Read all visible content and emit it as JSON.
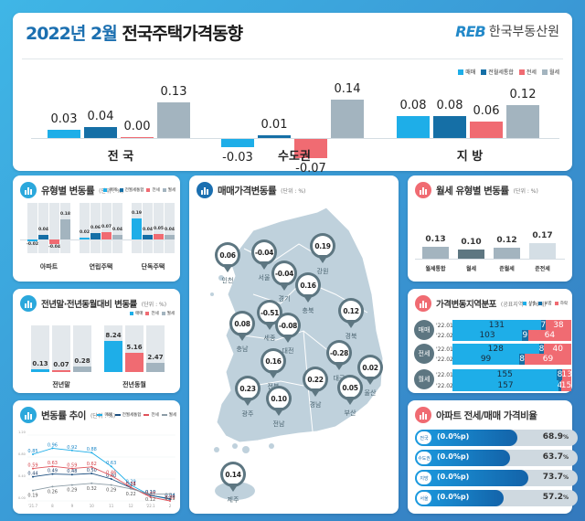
{
  "header": {
    "title_highlight": "2022년 2월",
    "title_main": "전국주택가격동향",
    "logo_mark": "REB",
    "logo_name": "한국부동산원"
  },
  "legend": {
    "sale": "매매",
    "combined": "전월세통합",
    "jeonse": "전세",
    "monthly": "월세"
  },
  "colors": {
    "sale": "#1eaee8",
    "combined": "#156fa6",
    "jeonse": "#f06b72",
    "monthly": "#a3b4bf",
    "accent": "#1b6fb0"
  },
  "overview": {
    "groups": [
      {
        "name": "전 국",
        "values": [
          "0.03",
          "0.04",
          "0.00",
          "0.13"
        ]
      },
      {
        "name": "수도권",
        "values": [
          "-0.03",
          "0.01",
          "-0.07",
          "0.14"
        ]
      },
      {
        "name": "지 방",
        "values": [
          "0.08",
          "0.08",
          "0.06",
          "0.12"
        ]
      }
    ]
  },
  "type_panel": {
    "title": "유형별 변동률",
    "unit": "(단위 : %)",
    "groups": [
      {
        "name": "아파트",
        "values": [
          "-0.02",
          "0.04",
          "-0.04",
          "0.18"
        ]
      },
      {
        "name": "연립주택",
        "values": [
          "0.02",
          "0.06",
          "0.07",
          "0.04"
        ]
      },
      {
        "name": "단독주택",
        "values": [
          "0.19",
          "0.04",
          "0.05",
          "0.04"
        ]
      }
    ]
  },
  "yoy_panel": {
    "title": "전년말·전년동월대비 변동률",
    "unit": "(단위 : %)",
    "legend": [
      "매매",
      "전세",
      "월세"
    ],
    "groups": [
      {
        "name": "전년말",
        "values": [
          "0.13",
          "0.07",
          "0.28"
        ]
      },
      {
        "name": "전년동월",
        "values": [
          "8.24",
          "5.16",
          "2.47"
        ]
      }
    ]
  },
  "trend_panel": {
    "title": "변동률 추이",
    "unit": "(단위 : %)",
    "legend": [
      "매매",
      "전월세통합",
      "전세",
      "월세"
    ]
  },
  "chart_data": {
    "type": "line",
    "title": "변동률 추이",
    "x": [
      "'21.7",
      "8",
      "9",
      "10",
      "11",
      "12",
      "'22.1",
      "2"
    ],
    "yticks": [
      "1.20",
      "0.80",
      "0.40",
      "0.00"
    ],
    "ylim": [
      0,
      1.2
    ],
    "series": [
      {
        "name": "매매",
        "values": [
          0.85,
          0.96,
          0.92,
          0.88,
          0.63,
          0.29,
          0.1,
          0.03
        ]
      },
      {
        "name": "전월세통합",
        "values": [
          0.44,
          0.49,
          0.48,
          0.5,
          0.4,
          0.24,
          0.1,
          0.04
        ]
      },
      {
        "name": "전세",
        "values": [
          0.59,
          0.63,
          0.59,
          0.62,
          0.46,
          0.25,
          0.07,
          0.0
        ]
      },
      {
        "name": "월세",
        "values": [
          0.19,
          0.26,
          0.29,
          0.32,
          0.29,
          0.22,
          0.12,
          0.13
        ]
      }
    ]
  },
  "map_panel": {
    "title": "매매가격변동률",
    "unit": "(단위 : %)",
    "regions": [
      {
        "name": "인천",
        "value": "0.06"
      },
      {
        "name": "서울",
        "value": "-0.04"
      },
      {
        "name": "경기",
        "value": "-0.04"
      },
      {
        "name": "강원",
        "value": "0.19"
      },
      {
        "name": "충북",
        "value": "0.16"
      },
      {
        "name": "세종",
        "value": "-0.51"
      },
      {
        "name": "충남",
        "value": "0.08"
      },
      {
        "name": "대전",
        "value": "-0.08"
      },
      {
        "name": "경북",
        "value": "0.12"
      },
      {
        "name": "대구",
        "value": "-0.28"
      },
      {
        "name": "전북",
        "value": "0.16"
      },
      {
        "name": "울산",
        "value": "0.02"
      },
      {
        "name": "광주",
        "value": "0.23"
      },
      {
        "name": "전남",
        "value": "0.10"
      },
      {
        "name": "경남",
        "value": "0.22"
      },
      {
        "name": "부산",
        "value": "0.05"
      },
      {
        "name": "제주",
        "value": "0.14"
      }
    ]
  },
  "rent_panel": {
    "title": "월세 유형별 변동률",
    "unit": "(단위 : %)",
    "items": [
      {
        "name": "월세통합",
        "value": "0.13"
      },
      {
        "name": "월세",
        "value": "0.10"
      },
      {
        "name": "준월세",
        "value": "0.12"
      },
      {
        "name": "준전세",
        "value": "0.17"
      }
    ]
  },
  "dist_panel": {
    "title": "가격변동지역분포",
    "note": "(공표지역 : 176개)",
    "legend": [
      "상승",
      "보합",
      "하락"
    ],
    "groups": [
      {
        "name": "매매",
        "rows": [
          {
            "period": "'22.01",
            "up": "131",
            "flat": "7",
            "down": "38"
          },
          {
            "period": "'22.02",
            "up": "103",
            "flat": "9",
            "down": "64"
          }
        ]
      },
      {
        "name": "전세",
        "rows": [
          {
            "period": "'22.01",
            "up": "128",
            "flat": "8",
            "down": "40"
          },
          {
            "period": "'22.02",
            "up": "99",
            "flat": "8",
            "down": "69"
          }
        ]
      },
      {
        "name": "월세",
        "rows": [
          {
            "period": "'22.01",
            "up": "155",
            "flat": "8",
            "down": "13"
          },
          {
            "period": "'22.02",
            "up": "157",
            "flat": "4",
            "down": "15"
          }
        ]
      }
    ]
  },
  "ratio_panel": {
    "title": "아파트 전세/매매 가격비율",
    "items": [
      {
        "tag": "전국",
        "change": "(0.0%p)",
        "value": "68.9",
        "unit": "%"
      },
      {
        "tag": "수도권",
        "change": "(0.0%p)",
        "value": "63.7",
        "unit": "%"
      },
      {
        "tag": "지방",
        "change": "(0.0%p)",
        "value": "73.7",
        "unit": "%"
      },
      {
        "tag": "서울",
        "change": "(0.0%p)",
        "value": "57.2",
        "unit": "%"
      }
    ]
  }
}
